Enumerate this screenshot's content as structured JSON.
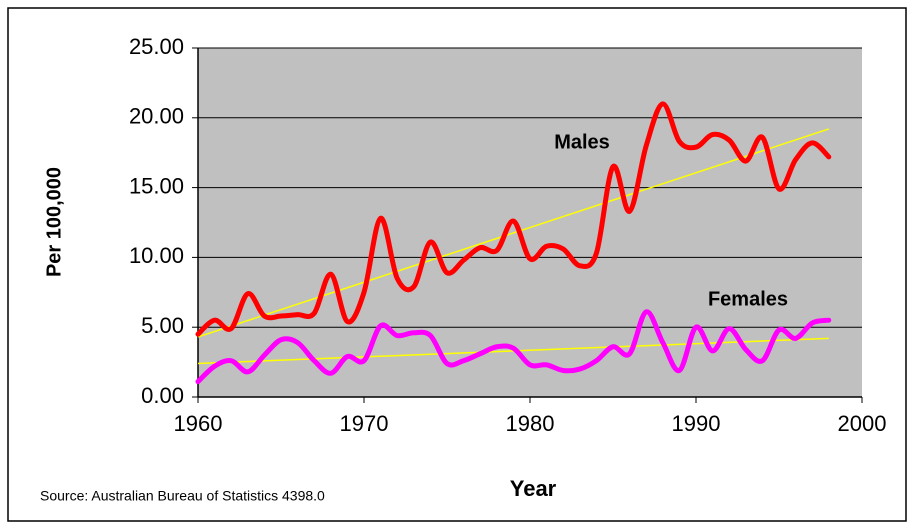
{
  "chart_data": {
    "type": "line",
    "x_label": "Year",
    "y_label": "Per 100,000",
    "source": "Source:  Australian Bureau of Statistics 4398.0",
    "x": [
      1960,
      1961,
      1962,
      1963,
      1964,
      1965,
      1966,
      1967,
      1968,
      1969,
      1970,
      1971,
      1972,
      1973,
      1974,
      1975,
      1976,
      1977,
      1978,
      1979,
      1980,
      1981,
      1982,
      1983,
      1984,
      1985,
      1986,
      1987,
      1988,
      1989,
      1990,
      1991,
      1992,
      1993,
      1994,
      1995,
      1996,
      1997,
      1998
    ],
    "series": [
      {
        "name": "Males",
        "color": "#ff0000",
        "values": [
          4.5,
          5.5,
          4.9,
          7.4,
          5.8,
          5.8,
          5.9,
          6.0,
          8.8,
          5.4,
          7.5,
          12.8,
          8.5,
          7.9,
          11.1,
          8.9,
          9.8,
          10.7,
          10.5,
          12.6,
          9.9,
          10.8,
          10.6,
          9.4,
          10.3,
          16.5,
          13.3,
          18.0,
          21.0,
          18.3,
          17.9,
          18.8,
          18.4,
          16.9,
          18.6,
          14.9,
          17.0,
          18.2,
          17.2
        ],
        "trend": {
          "color": "#ffff00",
          "x": [
            1960,
            1998
          ],
          "values": [
            4.3,
            19.2
          ]
        }
      },
      {
        "name": "Females",
        "color": "#ff00ff",
        "values": [
          1.1,
          2.2,
          2.6,
          1.8,
          3.0,
          4.1,
          3.9,
          2.6,
          1.7,
          2.9,
          2.6,
          5.1,
          4.4,
          4.6,
          4.4,
          2.4,
          2.6,
          3.1,
          3.6,
          3.5,
          2.3,
          2.3,
          1.9,
          2.0,
          2.6,
          3.6,
          3.1,
          6.1,
          3.9,
          1.9,
          5.0,
          3.3,
          4.9,
          3.4,
          2.6,
          4.8,
          4.2,
          5.3,
          5.5
        ],
        "trend": {
          "color": "#ffff00",
          "x": [
            1960,
            1998
          ],
          "values": [
            2.4,
            4.2
          ]
        }
      }
    ],
    "xlim": [
      1960,
      2000
    ],
    "xticks": [
      1960,
      1970,
      1980,
      1990,
      2000
    ],
    "ylim": [
      0,
      25
    ],
    "yticks": [
      {
        "value": 0,
        "label": "0.00"
      },
      {
        "value": 5,
        "label": "5.00"
      },
      {
        "value": 10,
        "label": "10.00"
      },
      {
        "value": 15,
        "label": "15.00"
      },
      {
        "value": 20,
        "label": "20.00"
      },
      {
        "value": 25,
        "label": "25.00"
      }
    ],
    "grid": true,
    "plot_background": "#c0c0c0"
  }
}
